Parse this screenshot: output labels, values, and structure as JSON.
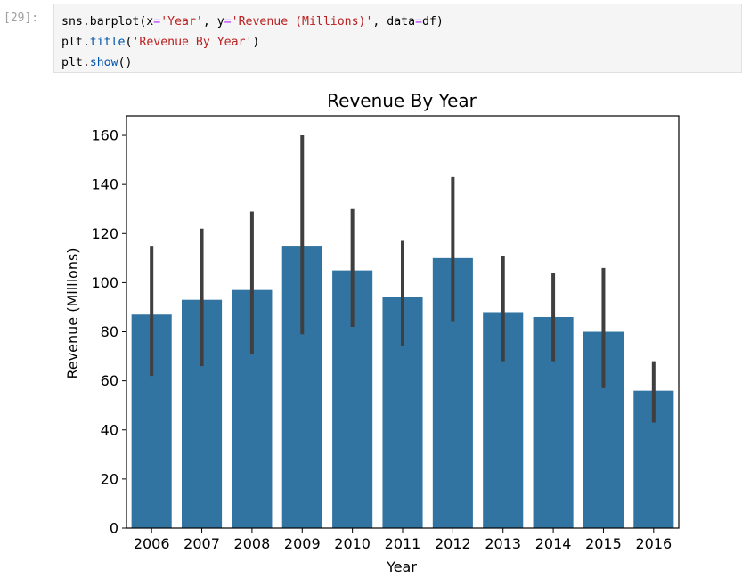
{
  "cell": {
    "prompt": "[29]:",
    "code_lines": [
      [
        {
          "t": "sns",
          "k": "plain"
        },
        {
          "t": ".",
          "k": "plain"
        },
        {
          "t": "barplot",
          "k": "plain"
        },
        {
          "t": "(x",
          "k": "plain"
        },
        {
          "t": "=",
          "k": "eq"
        },
        {
          "t": "'Year'",
          "k": "str"
        },
        {
          "t": ", y",
          "k": "plain"
        },
        {
          "t": "=",
          "k": "eq"
        },
        {
          "t": "'Revenue (Millions)'",
          "k": "str"
        },
        {
          "t": ", data",
          "k": "plain"
        },
        {
          "t": "=",
          "k": "eq"
        },
        {
          "t": "df)",
          "k": "plain"
        }
      ],
      [
        {
          "t": "plt",
          "k": "plain"
        },
        {
          "t": ".",
          "k": "plain"
        },
        {
          "t": "title",
          "k": "fn"
        },
        {
          "t": "(",
          "k": "plain"
        },
        {
          "t": "'Revenue By Year'",
          "k": "str"
        },
        {
          "t": ")",
          "k": "plain"
        }
      ],
      [
        {
          "t": "plt",
          "k": "plain"
        },
        {
          "t": ".",
          "k": "plain"
        },
        {
          "t": "show",
          "k": "fn"
        },
        {
          "t": "()",
          "k": "plain"
        }
      ]
    ]
  },
  "chart_data": {
    "type": "bar",
    "title": "Revenue By Year",
    "xlabel": "Year",
    "ylabel": "Revenue (Millions)",
    "ylim": [
      0,
      168
    ],
    "yticks": [
      0,
      20,
      40,
      60,
      80,
      100,
      120,
      140,
      160
    ],
    "categories": [
      "2006",
      "2007",
      "2008",
      "2009",
      "2010",
      "2011",
      "2012",
      "2013",
      "2014",
      "2015",
      "2016"
    ],
    "values": [
      87,
      93,
      97,
      115,
      105,
      94,
      110,
      88,
      86,
      80,
      56
    ],
    "error_low": [
      62,
      66,
      71,
      79,
      82,
      74,
      84,
      68,
      68,
      57,
      43
    ],
    "error_high": [
      115,
      122,
      129,
      160,
      130,
      117,
      143,
      111,
      104,
      106,
      68
    ],
    "grid": false,
    "bar_color": "#3274a1",
    "errbar_color": "#3f3f3f"
  }
}
